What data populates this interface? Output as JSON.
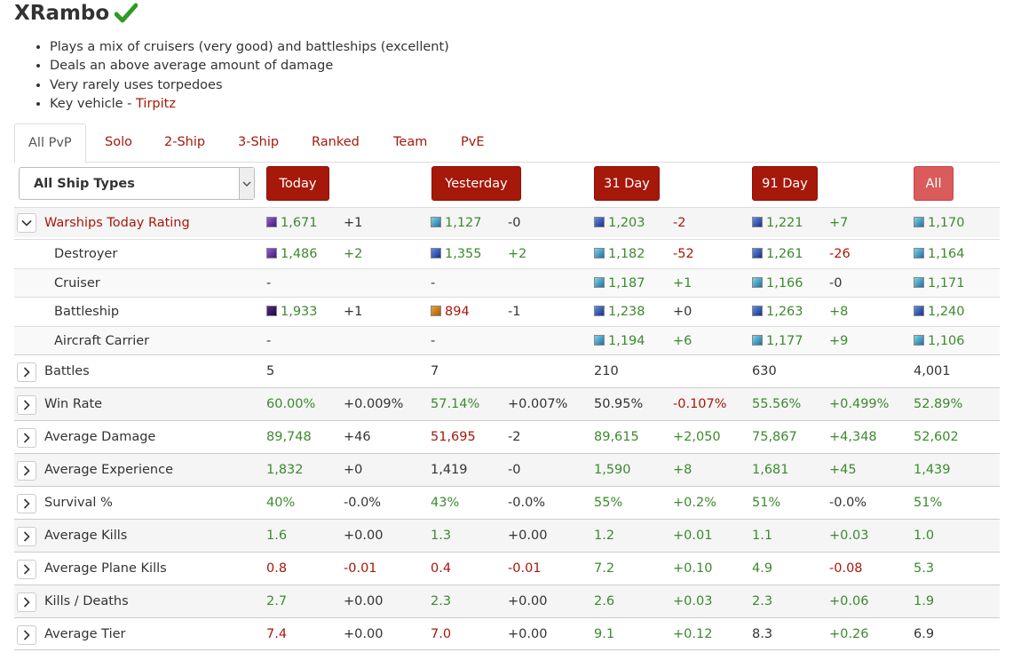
{
  "player": {
    "name": "XRambo"
  },
  "summary": [
    "Plays a mix of cruisers (very good) and battleships (excellent)",
    "Deals an above average amount of damage",
    "Very rarely uses torpedoes"
  ],
  "key_vehicle": {
    "prefix": "Key vehicle - ",
    "name": "Tirpitz"
  },
  "tabs": [
    "All PvP",
    "Solo",
    "2-Ship",
    "3-Ship",
    "Ranked",
    "Team",
    "PvE"
  ],
  "ship_type_select": "All Ship Types",
  "periods": [
    "Today",
    "Yesterday",
    "31 Day",
    "91 Day",
    "All"
  ],
  "colors": {
    "accent": "#a6180a",
    "good": "#3c8a2e",
    "bad": "#a6180a"
  },
  "ratings": {
    "header": "Warships Today Rating",
    "rows": [
      {
        "label": "Warships Today Rating",
        "cells": [
          {
            "v": "1,671",
            "c": "green",
            "sw": "purple"
          },
          {
            "v": "+1",
            "c": "dark"
          },
          {
            "v": "1,127",
            "c": "green",
            "sw": "cyan"
          },
          {
            "v": "-0",
            "c": "dark"
          },
          {
            "v": "1,203",
            "c": "green",
            "sw": "blue"
          },
          {
            "v": "-2",
            "c": "red"
          },
          {
            "v": "1,221",
            "c": "green",
            "sw": "blue"
          },
          {
            "v": "+7",
            "c": "green"
          },
          {
            "v": "1,170",
            "c": "green",
            "sw": "cyan"
          }
        ]
      },
      {
        "label": "Destroyer",
        "cells": [
          {
            "v": "1,486",
            "c": "green",
            "sw": "purple"
          },
          {
            "v": "+2",
            "c": "green"
          },
          {
            "v": "1,355",
            "c": "green",
            "sw": "blue"
          },
          {
            "v": "+2",
            "c": "green"
          },
          {
            "v": "1,182",
            "c": "green",
            "sw": "cyan"
          },
          {
            "v": "-52",
            "c": "red"
          },
          {
            "v": "1,261",
            "c": "green",
            "sw": "blue"
          },
          {
            "v": "-26",
            "c": "red"
          },
          {
            "v": "1,164",
            "c": "green",
            "sw": "cyan"
          }
        ]
      },
      {
        "label": "Cruiser",
        "cells": [
          {
            "v": "-",
            "c": "dark"
          },
          {
            "v": "",
            "c": "dark"
          },
          {
            "v": "-",
            "c": "dark"
          },
          {
            "v": "",
            "c": "dark"
          },
          {
            "v": "1,187",
            "c": "green",
            "sw": "cyan"
          },
          {
            "v": "+1",
            "c": "green"
          },
          {
            "v": "1,166",
            "c": "green",
            "sw": "cyan"
          },
          {
            "v": "-0",
            "c": "dark"
          },
          {
            "v": "1,171",
            "c": "green",
            "sw": "cyan"
          }
        ]
      },
      {
        "label": "Battleship",
        "cells": [
          {
            "v": "1,933",
            "c": "green",
            "sw": "darkpurple"
          },
          {
            "v": "+1",
            "c": "dark"
          },
          {
            "v": "894",
            "c": "red",
            "sw": "orange"
          },
          {
            "v": "-1",
            "c": "dark"
          },
          {
            "v": "1,238",
            "c": "green",
            "sw": "blue"
          },
          {
            "v": "+0",
            "c": "dark"
          },
          {
            "v": "1,263",
            "c": "green",
            "sw": "blue"
          },
          {
            "v": "+8",
            "c": "green"
          },
          {
            "v": "1,240",
            "c": "green",
            "sw": "blue"
          }
        ]
      },
      {
        "label": "Aircraft Carrier",
        "cells": [
          {
            "v": "-",
            "c": "dark"
          },
          {
            "v": "",
            "c": "dark"
          },
          {
            "v": "-",
            "c": "dark"
          },
          {
            "v": "",
            "c": "dark"
          },
          {
            "v": "1,194",
            "c": "green",
            "sw": "cyan"
          },
          {
            "v": "+6",
            "c": "green"
          },
          {
            "v": "1,177",
            "c": "green",
            "sw": "cyan"
          },
          {
            "v": "+9",
            "c": "green"
          },
          {
            "v": "1,106",
            "c": "green",
            "sw": "cyan"
          }
        ]
      }
    ]
  },
  "stats": [
    {
      "label": "Battles",
      "cells": [
        {
          "v": "5",
          "c": "dark"
        },
        {
          "v": "",
          "c": "dark"
        },
        {
          "v": "7",
          "c": "dark"
        },
        {
          "v": "",
          "c": "dark"
        },
        {
          "v": "210",
          "c": "dark"
        },
        {
          "v": "",
          "c": "dark"
        },
        {
          "v": "630",
          "c": "dark"
        },
        {
          "v": "",
          "c": "dark"
        },
        {
          "v": "4,001",
          "c": "dark"
        }
      ]
    },
    {
      "label": "Win Rate",
      "cells": [
        {
          "v": "60.00%",
          "c": "green"
        },
        {
          "v": "+0.009%",
          "c": "dark"
        },
        {
          "v": "57.14%",
          "c": "green"
        },
        {
          "v": "+0.007%",
          "c": "dark"
        },
        {
          "v": "50.95%",
          "c": "dark"
        },
        {
          "v": "-0.107%",
          "c": "red"
        },
        {
          "v": "55.56%",
          "c": "green"
        },
        {
          "v": "+0.499%",
          "c": "green"
        },
        {
          "v": "52.89%",
          "c": "green"
        }
      ]
    },
    {
      "label": "Average Damage",
      "cells": [
        {
          "v": "89,748",
          "c": "green"
        },
        {
          "v": "+46",
          "c": "dark"
        },
        {
          "v": "51,695",
          "c": "red"
        },
        {
          "v": "-2",
          "c": "dark"
        },
        {
          "v": "89,615",
          "c": "green"
        },
        {
          "v": "+2,050",
          "c": "green"
        },
        {
          "v": "75,867",
          "c": "green"
        },
        {
          "v": "+4,348",
          "c": "green"
        },
        {
          "v": "52,602",
          "c": "green"
        }
      ]
    },
    {
      "label": "Average Experience",
      "cells": [
        {
          "v": "1,832",
          "c": "green"
        },
        {
          "v": "+0",
          "c": "dark"
        },
        {
          "v": "1,419",
          "c": "dark"
        },
        {
          "v": "-0",
          "c": "dark"
        },
        {
          "v": "1,590",
          "c": "green"
        },
        {
          "v": "+8",
          "c": "green"
        },
        {
          "v": "1,681",
          "c": "green"
        },
        {
          "v": "+45",
          "c": "green"
        },
        {
          "v": "1,439",
          "c": "green"
        }
      ]
    },
    {
      "label": "Survival %",
      "cells": [
        {
          "v": "40%",
          "c": "green"
        },
        {
          "v": "-0.0%",
          "c": "dark"
        },
        {
          "v": "43%",
          "c": "green"
        },
        {
          "v": "-0.0%",
          "c": "dark"
        },
        {
          "v": "55%",
          "c": "green"
        },
        {
          "v": "+0.2%",
          "c": "green"
        },
        {
          "v": "51%",
          "c": "green"
        },
        {
          "v": "-0.0%",
          "c": "dark"
        },
        {
          "v": "51%",
          "c": "green"
        }
      ]
    },
    {
      "label": "Average Kills",
      "cells": [
        {
          "v": "1.6",
          "c": "green"
        },
        {
          "v": "+0.00",
          "c": "dark"
        },
        {
          "v": "1.3",
          "c": "green"
        },
        {
          "v": "+0.00",
          "c": "dark"
        },
        {
          "v": "1.2",
          "c": "green"
        },
        {
          "v": "+0.01",
          "c": "green"
        },
        {
          "v": "1.1",
          "c": "green"
        },
        {
          "v": "+0.03",
          "c": "green"
        },
        {
          "v": "1.0",
          "c": "green"
        }
      ]
    },
    {
      "label": "Average Plane Kills",
      "cells": [
        {
          "v": "0.8",
          "c": "red"
        },
        {
          "v": "-0.01",
          "c": "red"
        },
        {
          "v": "0.4",
          "c": "red"
        },
        {
          "v": "-0.01",
          "c": "red"
        },
        {
          "v": "7.2",
          "c": "green"
        },
        {
          "v": "+0.10",
          "c": "green"
        },
        {
          "v": "4.9",
          "c": "green"
        },
        {
          "v": "-0.08",
          "c": "red"
        },
        {
          "v": "5.3",
          "c": "green"
        }
      ]
    },
    {
      "label": "Kills / Deaths",
      "cells": [
        {
          "v": "2.7",
          "c": "green"
        },
        {
          "v": "+0.00",
          "c": "dark"
        },
        {
          "v": "2.3",
          "c": "green"
        },
        {
          "v": "+0.00",
          "c": "dark"
        },
        {
          "v": "2.6",
          "c": "green"
        },
        {
          "v": "+0.03",
          "c": "green"
        },
        {
          "v": "2.3",
          "c": "green"
        },
        {
          "v": "+0.06",
          "c": "green"
        },
        {
          "v": "1.9",
          "c": "green"
        }
      ]
    },
    {
      "label": "Average Tier",
      "cells": [
        {
          "v": "7.4",
          "c": "red"
        },
        {
          "v": "+0.00",
          "c": "dark"
        },
        {
          "v": "7.0",
          "c": "red"
        },
        {
          "v": "+0.00",
          "c": "dark"
        },
        {
          "v": "9.1",
          "c": "green"
        },
        {
          "v": "+0.12",
          "c": "green"
        },
        {
          "v": "8.3",
          "c": "dark"
        },
        {
          "v": "+0.26",
          "c": "green"
        },
        {
          "v": "6.9",
          "c": "dark"
        }
      ]
    }
  ]
}
